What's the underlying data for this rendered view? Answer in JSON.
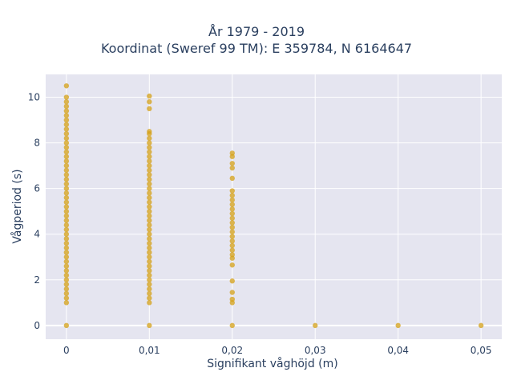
{
  "chart_data": {
    "type": "scatter",
    "title": [
      "År 1979 - 2019",
      "Koordinat (Sweref 99 TM): E 359784, N 6164647"
    ],
    "xlabel": "Signifikant våghöjd (m)",
    "ylabel": "Vågperiod (s)",
    "xlim": [
      -0.0025,
      0.0525
    ],
    "ylim": [
      -0.6,
      11
    ],
    "x_ticks": [
      0,
      0.01,
      0.02,
      0.03,
      0.04,
      0.05
    ],
    "x_tick_labels": [
      "0",
      "0,01",
      "0,02",
      "0,03",
      "0,04",
      "0,05"
    ],
    "y_ticks": [
      0,
      2,
      4,
      6,
      8,
      10
    ],
    "y_tick_labels": [
      "0",
      "2",
      "4",
      "6",
      "8",
      "10"
    ],
    "grid": true,
    "marker_color": "#d4a017",
    "plot_background": "#e5e5f0",
    "points": [
      {
        "x": 0,
        "y": 10.5
      },
      {
        "x": 0,
        "y": 10.0
      },
      {
        "x": 0,
        "y": 9.8
      },
      {
        "x": 0,
        "y": 9.6
      },
      {
        "x": 0,
        "y": 9.4
      },
      {
        "x": 0,
        "y": 9.2
      },
      {
        "x": 0,
        "y": 9.0
      },
      {
        "x": 0,
        "y": 8.8
      },
      {
        "x": 0,
        "y": 8.6
      },
      {
        "x": 0,
        "y": 8.4
      },
      {
        "x": 0,
        "y": 8.2
      },
      {
        "x": 0,
        "y": 8.0
      },
      {
        "x": 0,
        "y": 7.8
      },
      {
        "x": 0,
        "y": 7.6
      },
      {
        "x": 0,
        "y": 7.4
      },
      {
        "x": 0,
        "y": 7.2
      },
      {
        "x": 0,
        "y": 7.0
      },
      {
        "x": 0,
        "y": 6.8
      },
      {
        "x": 0,
        "y": 6.6
      },
      {
        "x": 0,
        "y": 6.4
      },
      {
        "x": 0,
        "y": 6.2
      },
      {
        "x": 0,
        "y": 6.0
      },
      {
        "x": 0,
        "y": 5.8
      },
      {
        "x": 0,
        "y": 5.6
      },
      {
        "x": 0,
        "y": 5.4
      },
      {
        "x": 0,
        "y": 5.2
      },
      {
        "x": 0,
        "y": 5.0
      },
      {
        "x": 0,
        "y": 4.8
      },
      {
        "x": 0,
        "y": 4.6
      },
      {
        "x": 0,
        "y": 4.4
      },
      {
        "x": 0,
        "y": 4.2
      },
      {
        "x": 0,
        "y": 4.0
      },
      {
        "x": 0,
        "y": 3.8
      },
      {
        "x": 0,
        "y": 3.6
      },
      {
        "x": 0,
        "y": 3.4
      },
      {
        "x": 0,
        "y": 3.2
      },
      {
        "x": 0,
        "y": 3.0
      },
      {
        "x": 0,
        "y": 2.8
      },
      {
        "x": 0,
        "y": 2.6
      },
      {
        "x": 0,
        "y": 2.4
      },
      {
        "x": 0,
        "y": 2.2
      },
      {
        "x": 0,
        "y": 2.0
      },
      {
        "x": 0,
        "y": 1.8
      },
      {
        "x": 0,
        "y": 1.6
      },
      {
        "x": 0,
        "y": 1.4
      },
      {
        "x": 0,
        "y": 1.2
      },
      {
        "x": 0,
        "y": 1.0
      },
      {
        "x": 0,
        "y": 0
      },
      {
        "x": 0.01,
        "y": 10.05
      },
      {
        "x": 0.01,
        "y": 9.8
      },
      {
        "x": 0.01,
        "y": 9.5
      },
      {
        "x": 0.01,
        "y": 8.5
      },
      {
        "x": 0.01,
        "y": 8.4
      },
      {
        "x": 0.01,
        "y": 8.2
      },
      {
        "x": 0.01,
        "y": 8.0
      },
      {
        "x": 0.01,
        "y": 7.8
      },
      {
        "x": 0.01,
        "y": 7.6
      },
      {
        "x": 0.01,
        "y": 7.4
      },
      {
        "x": 0.01,
        "y": 7.2
      },
      {
        "x": 0.01,
        "y": 7.0
      },
      {
        "x": 0.01,
        "y": 6.8
      },
      {
        "x": 0.01,
        "y": 6.6
      },
      {
        "x": 0.01,
        "y": 6.4
      },
      {
        "x": 0.01,
        "y": 6.2
      },
      {
        "x": 0.01,
        "y": 6.0
      },
      {
        "x": 0.01,
        "y": 5.8
      },
      {
        "x": 0.01,
        "y": 5.6
      },
      {
        "x": 0.01,
        "y": 5.4
      },
      {
        "x": 0.01,
        "y": 5.2
      },
      {
        "x": 0.01,
        "y": 5.0
      },
      {
        "x": 0.01,
        "y": 4.8
      },
      {
        "x": 0.01,
        "y": 4.6
      },
      {
        "x": 0.01,
        "y": 4.4
      },
      {
        "x": 0.01,
        "y": 4.2
      },
      {
        "x": 0.01,
        "y": 4.0
      },
      {
        "x": 0.01,
        "y": 3.8
      },
      {
        "x": 0.01,
        "y": 3.6
      },
      {
        "x": 0.01,
        "y": 3.4
      },
      {
        "x": 0.01,
        "y": 3.2
      },
      {
        "x": 0.01,
        "y": 3.0
      },
      {
        "x": 0.01,
        "y": 2.8
      },
      {
        "x": 0.01,
        "y": 2.6
      },
      {
        "x": 0.01,
        "y": 2.4
      },
      {
        "x": 0.01,
        "y": 2.2
      },
      {
        "x": 0.01,
        "y": 2.0
      },
      {
        "x": 0.01,
        "y": 1.8
      },
      {
        "x": 0.01,
        "y": 1.6
      },
      {
        "x": 0.01,
        "y": 1.4
      },
      {
        "x": 0.01,
        "y": 1.2
      },
      {
        "x": 0.01,
        "y": 1.0
      },
      {
        "x": 0.01,
        "y": 0
      },
      {
        "x": 0.02,
        "y": 7.55
      },
      {
        "x": 0.02,
        "y": 7.4
      },
      {
        "x": 0.02,
        "y": 7.1
      },
      {
        "x": 0.02,
        "y": 6.9
      },
      {
        "x": 0.02,
        "y": 6.45
      },
      {
        "x": 0.02,
        "y": 5.9
      },
      {
        "x": 0.02,
        "y": 5.7
      },
      {
        "x": 0.02,
        "y": 5.5
      },
      {
        "x": 0.02,
        "y": 5.3
      },
      {
        "x": 0.02,
        "y": 5.1
      },
      {
        "x": 0.02,
        "y": 4.9
      },
      {
        "x": 0.02,
        "y": 4.7
      },
      {
        "x": 0.02,
        "y": 4.5
      },
      {
        "x": 0.02,
        "y": 4.3
      },
      {
        "x": 0.02,
        "y": 4.1
      },
      {
        "x": 0.02,
        "y": 3.9
      },
      {
        "x": 0.02,
        "y": 3.7
      },
      {
        "x": 0.02,
        "y": 3.5
      },
      {
        "x": 0.02,
        "y": 3.3
      },
      {
        "x": 0.02,
        "y": 3.1
      },
      {
        "x": 0.02,
        "y": 2.95
      },
      {
        "x": 0.02,
        "y": 2.65
      },
      {
        "x": 0.02,
        "y": 1.95
      },
      {
        "x": 0.02,
        "y": 1.45
      },
      {
        "x": 0.02,
        "y": 1.15
      },
      {
        "x": 0.02,
        "y": 1.0
      },
      {
        "x": 0.02,
        "y": 0
      },
      {
        "x": 0.03,
        "y": 0
      },
      {
        "x": 0.04,
        "y": 0
      },
      {
        "x": 0.05,
        "y": 0
      }
    ]
  }
}
